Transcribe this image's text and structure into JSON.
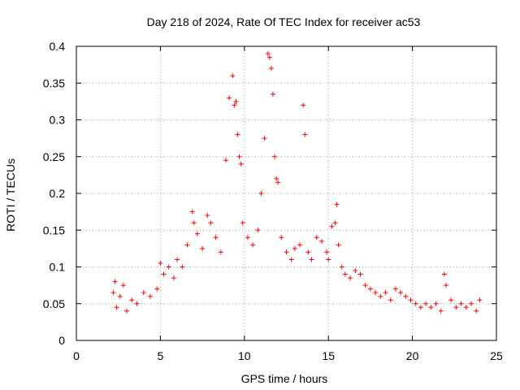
{
  "chart_data": {
    "type": "scatter",
    "title": "Day 218 of 2024, Rate Of TEC Index for receiver ac53",
    "xlabel": "GPS time / hours",
    "ylabel": "ROTI / TECUs",
    "xlim": [
      0,
      25
    ],
    "ylim": [
      0,
      0.4
    ],
    "x_ticks": [
      "0",
      "5",
      "10",
      "15",
      "20",
      "25"
    ],
    "y_ticks": [
      "0",
      "0.05",
      "0.1",
      "0.15",
      "0.2",
      "0.25",
      "0.3",
      "0.35",
      "0.4"
    ],
    "grid": true,
    "marker": "plus",
    "color": "#ff0000",
    "series": [
      {
        "x": [
          2.2,
          2.3,
          2.4,
          2.6,
          2.8,
          3.0,
          3.3,
          3.6,
          4.0,
          4.4,
          4.8,
          5.0,
          5.2,
          5.5,
          5.8,
          6.0,
          6.3,
          6.6,
          6.9,
          7.0,
          7.2,
          7.5,
          7.8,
          8.0,
          8.3,
          8.6,
          8.9,
          9.1,
          9.3,
          9.4,
          9.5,
          9.6,
          9.7,
          9.8,
          9.9,
          10.2,
          10.5,
          10.8,
          11.0,
          11.2,
          11.4,
          11.5,
          11.6,
          11.7,
          11.8,
          11.9,
          12.0,
          12.2,
          12.5,
          12.8,
          13.0,
          13.3,
          13.5,
          13.6,
          13.8,
          14.0,
          14.3,
          14.6,
          14.9,
          15.0,
          15.2,
          15.4,
          15.5,
          15.6,
          15.8,
          16.0,
          16.3,
          16.6,
          16.9,
          17.2,
          17.5,
          17.8,
          18.1,
          18.4,
          18.7,
          19.0,
          19.3,
          19.6,
          19.9,
          20.2,
          20.5,
          20.8,
          21.1,
          21.4,
          21.7,
          21.9,
          22.0,
          22.3,
          22.6,
          22.9,
          23.2,
          23.5,
          23.8,
          24.0
        ],
        "y": [
          0.065,
          0.08,
          0.045,
          0.06,
          0.075,
          0.04,
          0.055,
          0.05,
          0.065,
          0.06,
          0.07,
          0.105,
          0.09,
          0.1,
          0.085,
          0.11,
          0.1,
          0.13,
          0.175,
          0.16,
          0.145,
          0.125,
          0.17,
          0.16,
          0.14,
          0.12,
          0.245,
          0.33,
          0.36,
          0.32,
          0.325,
          0.28,
          0.25,
          0.24,
          0.16,
          0.14,
          0.13,
          0.15,
          0.2,
          0.275,
          0.39,
          0.385,
          0.37,
          0.335,
          0.25,
          0.22,
          0.215,
          0.14,
          0.12,
          0.11,
          0.125,
          0.13,
          0.32,
          0.28,
          0.12,
          0.11,
          0.14,
          0.135,
          0.12,
          0.11,
          0.155,
          0.16,
          0.185,
          0.13,
          0.1,
          0.09,
          0.085,
          0.095,
          0.09,
          0.075,
          0.07,
          0.065,
          0.06,
          0.065,
          0.055,
          0.07,
          0.065,
          0.06,
          0.055,
          0.05,
          0.045,
          0.05,
          0.045,
          0.05,
          0.04,
          0.09,
          0.075,
          0.055,
          0.045,
          0.05,
          0.045,
          0.05,
          0.04,
          0.055
        ]
      }
    ]
  }
}
